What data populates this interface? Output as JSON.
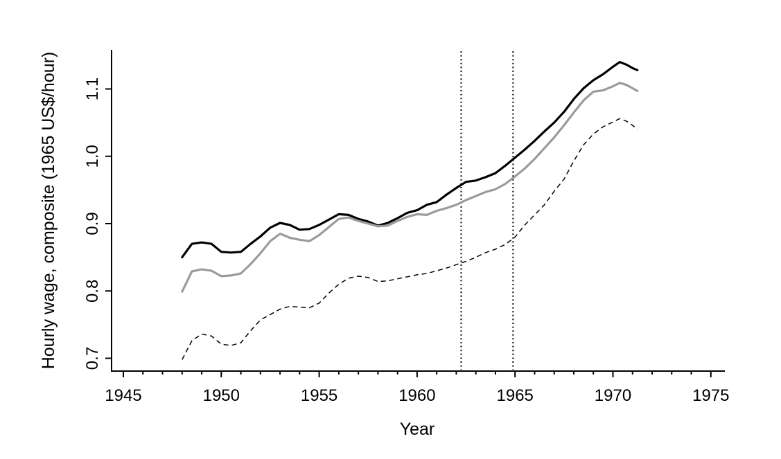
{
  "figure": {
    "title": "",
    "xlabel": "Year",
    "ylabel": "Hourly wage, composite (1965 US$/hour)"
  },
  "colors": {
    "background": "#ffffff",
    "axis": "#000000",
    "series_black": "#000000",
    "series_gray": "#9b9b9b",
    "vline": "#000000"
  },
  "chart_data": {
    "type": "line",
    "title": "",
    "xlabel": "Year",
    "ylabel": "Hourly wage, composite (1965 US$/hour)",
    "xlim": [
      1944.4,
      1976.1
    ],
    "ylim": [
      0.674,
      1.159
    ],
    "grid": false,
    "legend": false,
    "x_tick_labels": [
      "1945",
      "1950",
      "1955",
      "1960",
      "1965",
      "1970",
      "1975"
    ],
    "x_ticks_major": [
      1945,
      1950,
      1955,
      1960,
      1965,
      1970,
      1975
    ],
    "x_ticks_minor": [
      1946,
      1947,
      1948,
      1949,
      1951,
      1952,
      1953,
      1954,
      1956,
      1957,
      1958,
      1959,
      1961,
      1962,
      1963,
      1964,
      1966,
      1967,
      1968,
      1969,
      1971,
      1972,
      1973,
      1974
    ],
    "y_tick_labels": [
      "0.7",
      "0.8",
      "0.9",
      "1.0",
      "1.1"
    ],
    "y_ticks": [
      0.7,
      0.8,
      0.9,
      1.0,
      1.1
    ],
    "vlines": [
      {
        "name": "event-line-1962",
        "x": 1962.25,
        "style": "dotted"
      },
      {
        "name": "event-line-1965",
        "x": 1964.9,
        "style": "dotted"
      }
    ],
    "x": [
      1948,
      1948.5,
      1949,
      1949.5,
      1950,
      1950.5,
      1951,
      1951.5,
      1952,
      1952.5,
      1953,
      1953.5,
      1954,
      1954.5,
      1955,
      1955.5,
      1956,
      1956.5,
      1957,
      1957.5,
      1958,
      1958.5,
      1959,
      1959.5,
      1960,
      1960.5,
      1961,
      1961.5,
      1962,
      1962.5,
      1963,
      1963.5,
      1964,
      1964.5,
      1965,
      1965.5,
      1966,
      1966.5,
      1967,
      1967.5,
      1968,
      1968.5,
      1969,
      1969.5,
      1970,
      1970.35,
      1970.7,
      1971,
      1971.25
    ],
    "series": [
      {
        "name": "wage-composite-upper-black-solid",
        "color": "#000000",
        "line_style": "solid",
        "line_width": 3.2,
        "values": [
          0.85,
          0.87,
          0.872,
          0.87,
          0.858,
          0.857,
          0.858,
          0.87,
          0.881,
          0.894,
          0.901,
          0.898,
          0.891,
          0.892,
          0.898,
          0.906,
          0.914,
          0.913,
          0.907,
          0.903,
          0.897,
          0.901,
          0.908,
          0.916,
          0.92,
          0.928,
          0.932,
          0.943,
          0.953,
          0.962,
          0.964,
          0.969,
          0.975,
          0.986,
          0.998,
          1.01,
          1.023,
          1.037,
          1.05,
          1.066,
          1.085,
          1.101,
          1.113,
          1.122,
          1.133,
          1.14,
          1.136,
          1.131,
          1.128
        ]
      },
      {
        "name": "wage-composite-middle-gray-solid",
        "color": "#9b9b9b",
        "line_style": "solid",
        "line_width": 3.2,
        "values": [
          0.799,
          0.829,
          0.832,
          0.83,
          0.822,
          0.823,
          0.826,
          0.84,
          0.856,
          0.874,
          0.885,
          0.879,
          0.876,
          0.874,
          0.883,
          0.895,
          0.907,
          0.909,
          0.904,
          0.9,
          0.896,
          0.897,
          0.904,
          0.91,
          0.914,
          0.913,
          0.919,
          0.923,
          0.928,
          0.935,
          0.941,
          0.947,
          0.951,
          0.959,
          0.97,
          0.982,
          0.996,
          1.012,
          1.028,
          1.046,
          1.065,
          1.083,
          1.096,
          1.098,
          1.104,
          1.109,
          1.106,
          1.101,
          1.097
        ]
      },
      {
        "name": "wage-composite-lower-black-dashed",
        "color": "#000000",
        "line_style": "dashed",
        "line_width": 1.5,
        "values": [
          0.698,
          0.726,
          0.736,
          0.733,
          0.721,
          0.719,
          0.723,
          0.741,
          0.757,
          0.765,
          0.773,
          0.777,
          0.776,
          0.775,
          0.782,
          0.797,
          0.81,
          0.819,
          0.822,
          0.82,
          0.814,
          0.815,
          0.818,
          0.821,
          0.824,
          0.826,
          0.83,
          0.834,
          0.839,
          0.844,
          0.85,
          0.857,
          0.862,
          0.869,
          0.88,
          0.898,
          0.913,
          0.928,
          0.948,
          0.966,
          0.993,
          1.017,
          1.033,
          1.044,
          1.051,
          1.056,
          1.052,
          1.046,
          1.04
        ]
      }
    ]
  }
}
